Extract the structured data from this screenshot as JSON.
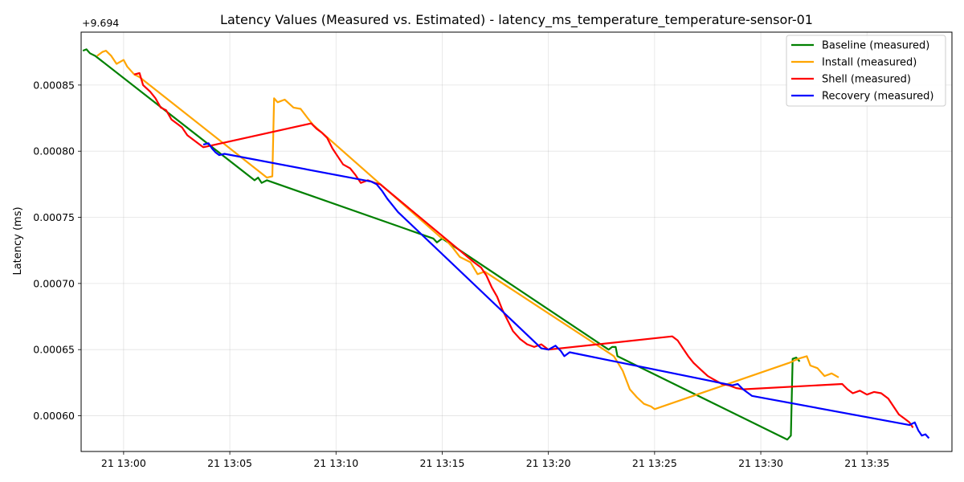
{
  "chart_data": {
    "type": "line",
    "title": "Latency Values (Measured vs. Estimated) - latency_ms_temperature_temperature-sensor-01",
    "xlabel": "",
    "ylabel": "Latency (ms)",
    "y_offset_label": "+9.694",
    "xlim": [
      "21 12:58",
      "21 13:39"
    ],
    "ylim": [
      0.000573,
      0.00089
    ],
    "x_ticks": [
      "21 13:00",
      "21 13:05",
      "21 13:10",
      "21 13:15",
      "21 13:20",
      "21 13:25",
      "21 13:30",
      "21 13:35"
    ],
    "y_ticks": [
      "0.00060",
      "0.00065",
      "0.00070",
      "0.00075",
      "0.00080",
      "0.00085"
    ],
    "y_tick_values": [
      0.0006,
      0.00065,
      0.0007,
      0.00075,
      0.0008,
      0.00085
    ],
    "grid": true,
    "legend_position": "top-right",
    "series": [
      {
        "name": "Baseline (measured)",
        "color": "#008000",
        "points": [
          [
            "21 12:58:05",
            0.000876
          ],
          [
            "21 12:58:15",
            0.000877
          ],
          [
            "21 12:58:25",
            0.000874
          ],
          [
            "21 12:58:40",
            0.000872
          ],
          [
            "21 13:06:10",
            0.000778
          ],
          [
            "21 13:06:20",
            0.00078
          ],
          [
            "21 13:06:30",
            0.000776
          ],
          [
            "21 13:06:45",
            0.000778
          ],
          [
            "21 13:14:35",
            0.000734
          ],
          [
            "21 13:14:45",
            0.000731
          ],
          [
            "21 13:15:00",
            0.000734
          ],
          [
            "21 13:22:50",
            0.00065
          ],
          [
            "21 13:23:00",
            0.000652
          ],
          [
            "21 13:23:10",
            0.000652
          ],
          [
            "21 13:23:15",
            0.000645
          ],
          [
            "21 13:31:15",
            0.000582
          ],
          [
            "21 13:31:25",
            0.000585
          ],
          [
            "21 13:31:30",
            0.000643
          ],
          [
            "21 13:31:40",
            0.000644
          ],
          [
            "21 13:31:50",
            0.000641
          ]
        ]
      },
      {
        "name": "Install (measured)",
        "color": "#ffa500",
        "points": [
          [
            "21 12:58:45",
            0.000872
          ],
          [
            "21 12:59:00",
            0.000875
          ],
          [
            "21 12:59:10",
            0.000876
          ],
          [
            "21 12:59:25",
            0.000872
          ],
          [
            "21 12:59:40",
            0.000866
          ],
          [
            "21 13:00:00",
            0.000869
          ],
          [
            "21 13:00:10",
            0.000864
          ],
          [
            "21 13:00:30",
            0.000858
          ],
          [
            "21 13:00:45",
            0.000856
          ],
          [
            "21 13:06:45",
            0.00078
          ],
          [
            "21 13:07:00",
            0.000781
          ],
          [
            "21 13:07:05",
            0.00084
          ],
          [
            "21 13:07:15",
            0.000837
          ],
          [
            "21 13:07:35",
            0.000839
          ],
          [
            "21 13:08:00",
            0.000833
          ],
          [
            "21 13:08:20",
            0.000832
          ],
          [
            "21 13:08:40",
            0.000825
          ],
          [
            "21 13:08:55",
            0.00082
          ],
          [
            "21 13:14:55",
            0.000735
          ],
          [
            "21 13:15:10",
            0.000733
          ],
          [
            "21 13:15:30",
            0.000727
          ],
          [
            "21 13:15:50",
            0.00072
          ],
          [
            "21 13:16:20",
            0.000716
          ],
          [
            "21 13:16:40",
            0.000707
          ],
          [
            "21 13:17:00",
            0.000709
          ],
          [
            "21 13:23:05",
            0.000645
          ],
          [
            "21 13:23:30",
            0.000634
          ],
          [
            "21 13:23:50",
            0.00062
          ],
          [
            "21 13:24:10",
            0.000614
          ],
          [
            "21 13:24:30",
            0.000609
          ],
          [
            "21 13:24:50",
            0.000607
          ],
          [
            "21 13:25:00",
            0.000605
          ],
          [
            "21 13:31:20",
            0.00064
          ],
          [
            "21 13:31:45",
            0.000643
          ],
          [
            "21 13:32:10",
            0.000645
          ],
          [
            "21 13:32:20",
            0.000638
          ],
          [
            "21 13:32:40",
            0.000636
          ],
          [
            "21 13:33:00",
            0.00063
          ],
          [
            "21 13:33:20",
            0.000632
          ],
          [
            "21 13:33:40",
            0.000629
          ]
        ]
      },
      {
        "name": "Shell (measured)",
        "color": "#ff0000",
        "points": [
          [
            "21 13:00:30",
            0.000858
          ],
          [
            "21 13:00:45",
            0.000859
          ],
          [
            "21 13:00:55",
            0.00085
          ],
          [
            "21 13:01:15",
            0.000845
          ],
          [
            "21 13:01:30",
            0.00084
          ],
          [
            "21 13:01:45",
            0.000833
          ],
          [
            "21 13:02:00",
            0.000831
          ],
          [
            "21 13:02:15",
            0.000824
          ],
          [
            "21 13:02:30",
            0.000821
          ],
          [
            "21 13:02:45",
            0.000818
          ],
          [
            "21 13:03:00",
            0.000812
          ],
          [
            "21 13:03:20",
            0.000808
          ],
          [
            "21 13:03:45",
            0.000803
          ],
          [
            "21 13:08:50",
            0.000821
          ],
          [
            "21 13:09:05",
            0.000817
          ],
          [
            "21 13:09:20",
            0.000814
          ],
          [
            "21 13:09:35",
            0.00081
          ],
          [
            "21 13:09:50",
            0.000802
          ],
          [
            "21 13:10:05",
            0.000796
          ],
          [
            "21 13:10:20",
            0.00079
          ],
          [
            "21 13:10:40",
            0.000787
          ],
          [
            "21 13:10:55",
            0.000782
          ],
          [
            "21 13:11:10",
            0.000776
          ],
          [
            "21 13:11:30",
            0.000778
          ],
          [
            "21 13:11:50",
            0.000776
          ],
          [
            "21 13:12:05",
            0.000775
          ],
          [
            "21 13:16:30",
            0.000716
          ],
          [
            "21 13:16:50",
            0.000712
          ],
          [
            "21 13:17:05",
            0.000706
          ],
          [
            "21 13:17:20",
            0.000697
          ],
          [
            "21 13:17:35",
            0.00069
          ],
          [
            "21 13:17:50",
            0.00068
          ],
          [
            "21 13:18:05",
            0.000672
          ],
          [
            "21 13:18:20",
            0.000664
          ],
          [
            "21 13:18:40",
            0.000658
          ],
          [
            "21 13:19:00",
            0.000654
          ],
          [
            "21 13:19:20",
            0.000652
          ],
          [
            "21 13:19:40",
            0.000654
          ],
          [
            "21 13:20:00",
            0.00065
          ],
          [
            "21 13:25:50",
            0.00066
          ],
          [
            "21 13:26:05",
            0.000657
          ],
          [
            "21 13:26:20",
            0.000651
          ],
          [
            "21 13:26:35",
            0.000645
          ],
          [
            "21 13:26:50",
            0.00064
          ],
          [
            "21 13:27:10",
            0.000635
          ],
          [
            "21 13:27:30",
            0.00063
          ],
          [
            "21 13:27:50",
            0.000627
          ],
          [
            "21 13:28:10",
            0.000624
          ],
          [
            "21 13:28:30",
            0.000623
          ],
          [
            "21 13:28:50",
            0.000621
          ],
          [
            "21 13:29:10",
            0.00062
          ],
          [
            "21 13:33:50",
            0.000624
          ],
          [
            "21 13:34:05",
            0.00062
          ],
          [
            "21 13:34:20",
            0.000617
          ],
          [
            "21 13:34:40",
            0.000619
          ],
          [
            "21 13:35:00",
            0.000616
          ],
          [
            "21 13:35:20",
            0.000618
          ],
          [
            "21 13:35:40",
            0.000617
          ],
          [
            "21 13:36:00",
            0.000613
          ],
          [
            "21 13:36:15",
            0.000607
          ],
          [
            "21 13:36:30",
            0.000601
          ],
          [
            "21 13:36:45",
            0.000598
          ],
          [
            "21 13:37:00",
            0.000595
          ],
          [
            "21 13:37:10",
            0.000591
          ]
        ]
      },
      {
        "name": "Recovery (measured)",
        "color": "#0000ff",
        "points": [
          [
            "21 13:03:45",
            0.000805
          ],
          [
            "21 13:04:00",
            0.000806
          ],
          [
            "21 13:04:10",
            0.000802
          ],
          [
            "21 13:04:20",
            0.000799
          ],
          [
            "21 13:04:30",
            0.000797
          ],
          [
            "21 13:04:45",
            0.000798
          ],
          [
            "21 13:11:40",
            0.000777
          ],
          [
            "21 13:11:55",
            0.000775
          ],
          [
            "21 13:12:10",
            0.00077
          ],
          [
            "21 13:12:25",
            0.000764
          ],
          [
            "21 13:12:40",
            0.000759
          ],
          [
            "21 13:12:55",
            0.000754
          ],
          [
            "21 13:19:40",
            0.000651
          ],
          [
            "21 13:20:00",
            0.00065
          ],
          [
            "21 13:20:20",
            0.000653
          ],
          [
            "21 13:20:35",
            0.000649
          ],
          [
            "21 13:20:45",
            0.000645
          ],
          [
            "21 13:21:00",
            0.000648
          ],
          [
            "21 13:28:40",
            0.000623
          ],
          [
            "21 13:28:55",
            0.000624
          ],
          [
            "21 13:29:10",
            0.00062
          ],
          [
            "21 13:29:25",
            0.000617
          ],
          [
            "21 13:29:35",
            0.000615
          ],
          [
            "21 13:37:00",
            0.000593
          ],
          [
            "21 13:37:15",
            0.000595
          ],
          [
            "21 13:37:25",
            0.000589
          ],
          [
            "21 13:37:35",
            0.000585
          ],
          [
            "21 13:37:45",
            0.000586
          ],
          [
            "21 13:37:55",
            0.000583
          ]
        ]
      }
    ]
  }
}
